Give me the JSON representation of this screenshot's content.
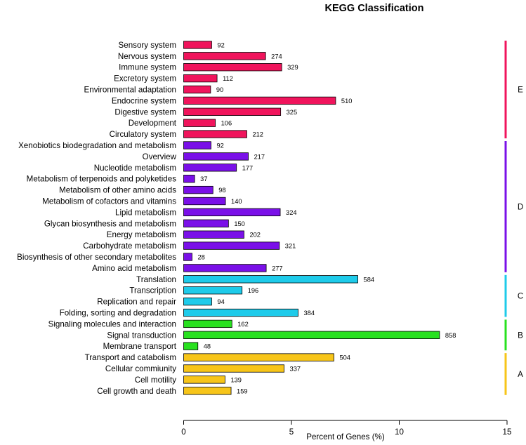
{
  "chart_data": {
    "type": "bar",
    "orientation": "horizontal",
    "title": "KEGG Classification",
    "xlabel": "Percent of Genes (%)",
    "ylabel": "",
    "xlim": [
      0,
      15
    ],
    "xticks": [
      0,
      5,
      10,
      15
    ],
    "grid": false,
    "groups": [
      {
        "name": "E",
        "color": "#F0145C",
        "items": [
          {
            "label": "Sensory system",
            "percent": 1.3,
            "count": 92
          },
          {
            "label": "Nervous system",
            "percent": 3.8,
            "count": 274
          },
          {
            "label": "Immune system",
            "percent": 4.55,
            "count": 329
          },
          {
            "label": "Excretory system",
            "percent": 1.55,
            "count": 112
          },
          {
            "label": "Environmental adaptation",
            "percent": 1.25,
            "count": 90
          },
          {
            "label": "Endocrine system",
            "percent": 7.05,
            "count": 510
          },
          {
            "label": "Digestive system",
            "percent": 4.5,
            "count": 325
          },
          {
            "label": "Development",
            "percent": 1.47,
            "count": 106
          },
          {
            "label": "Circulatory system",
            "percent": 2.93,
            "count": 212
          }
        ]
      },
      {
        "name": "D",
        "color": "#7A10E8",
        "items": [
          {
            "label": "Xenobiotics biodegradation and metabolism",
            "percent": 1.27,
            "count": 92
          },
          {
            "label": "Overview",
            "percent": 3.0,
            "count": 217
          },
          {
            "label": "Nucleotide metabolism",
            "percent": 2.45,
            "count": 177
          },
          {
            "label": "Metabolism of terpenoids and polyketides",
            "percent": 0.51,
            "count": 37
          },
          {
            "label": "Metabolism of other amino acids",
            "percent": 1.36,
            "count": 98
          },
          {
            "label": "Metabolism of cofactors and vitamins",
            "percent": 1.94,
            "count": 140
          },
          {
            "label": "Lipid metabolism",
            "percent": 4.48,
            "count": 324
          },
          {
            "label": "Glycan biosynthesis and metabolism",
            "percent": 2.08,
            "count": 150
          },
          {
            "label": "Energy metabolism",
            "percent": 2.8,
            "count": 202
          },
          {
            "label": "Carbohydrate metabolism",
            "percent": 4.44,
            "count": 321
          },
          {
            "label": "Biosynthesis of other secondary metabolites",
            "percent": 0.39,
            "count": 28
          },
          {
            "label": "Amino acid metabolism",
            "percent": 3.83,
            "count": 277
          }
        ]
      },
      {
        "name": "C",
        "color": "#1ECBEA",
        "items": [
          {
            "label": "Translation",
            "percent": 8.08,
            "count": 584
          },
          {
            "label": "Transcription",
            "percent": 2.71,
            "count": 196
          },
          {
            "label": "Replication and repair",
            "percent": 1.3,
            "count": 94
          },
          {
            "label": "Folding, sorting and degradation",
            "percent": 5.31,
            "count": 384
          }
        ]
      },
      {
        "name": "B",
        "color": "#28E11F",
        "items": [
          {
            "label": "Signaling molecules and interaction",
            "percent": 2.24,
            "count": 162
          },
          {
            "label": "Signal transduction",
            "percent": 11.87,
            "count": 858
          },
          {
            "label": "Membrane transport",
            "percent": 0.66,
            "count": 48
          }
        ]
      },
      {
        "name": "A",
        "color": "#F7C519",
        "items": [
          {
            "label": "Transport and catabolism",
            "percent": 6.97,
            "count": 504
          },
          {
            "label": "Cellular commiunity",
            "percent": 4.66,
            "count": 337
          },
          {
            "label": "Cell motility",
            "percent": 1.92,
            "count": 139
          },
          {
            "label": "Cell growth and death",
            "percent": 2.2,
            "count": 159
          }
        ]
      }
    ]
  }
}
